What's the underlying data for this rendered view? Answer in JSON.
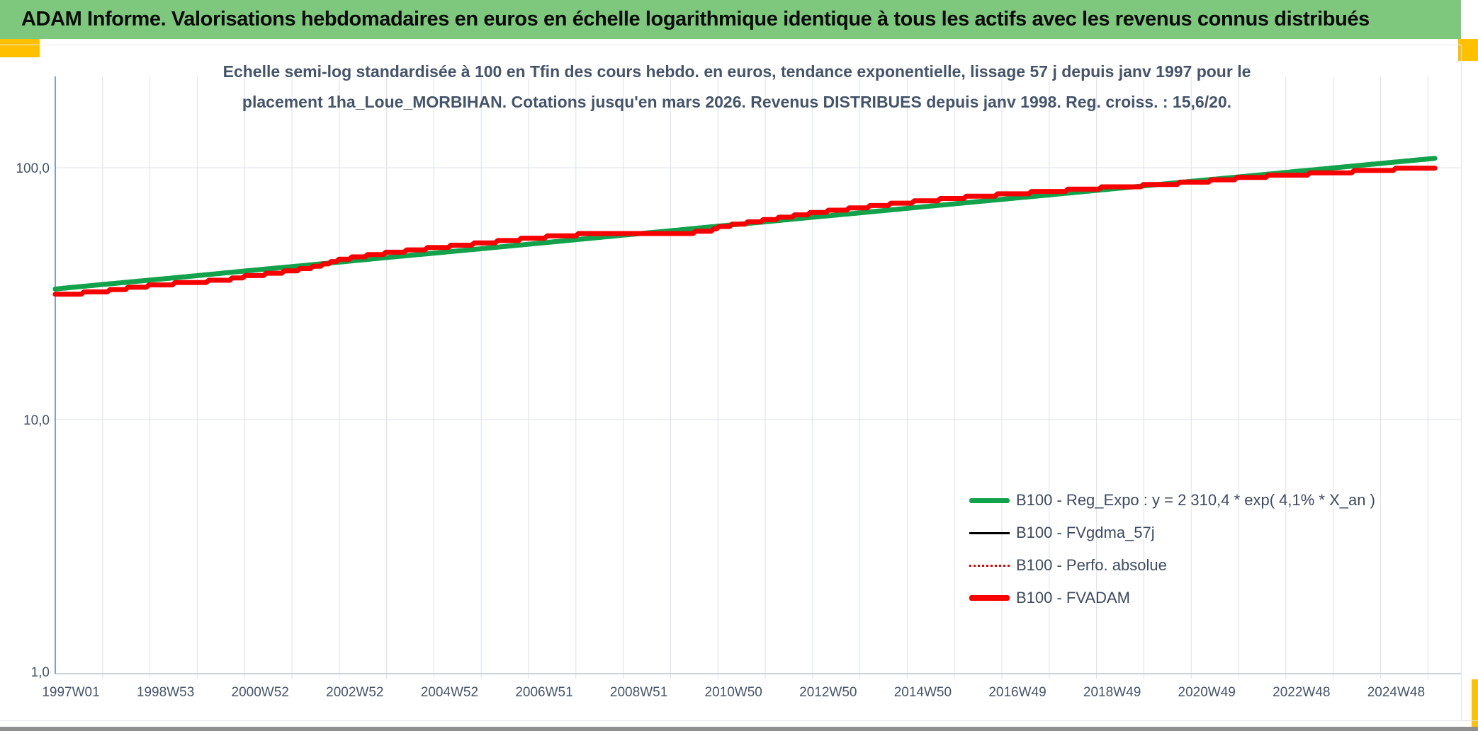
{
  "header": {
    "title": "ADAM Informe. Valorisations hebdomadaires en euros en échelle logarithmique identique à tous les actifs avec les revenus connus distribués",
    "bg_color": "#7DC87D",
    "accent_color": "#FFC000"
  },
  "chart": {
    "title_line1": "Echelle semi-log standardisée à 100 en Tfin des cours hebdo. en euros, tendance exponentielle, lissage 57 j depuis janv 1997 pour le",
    "title_line2": "placement 1ha_Loue_MORBIHAN. Cotations jusqu'en mars 2026. Revenus DISTRIBUES depuis janv 1998. Reg. croiss. : 15,6/20.",
    "title_color": "#44546A",
    "grid_color": "#DCE1E9",
    "axis_line_color": "#5E7DB5",
    "axis_bottom_color": "#CDD3DB",
    "tick_label_color": "#44546A"
  },
  "chart_data": {
    "type": "line",
    "title": "Echelle semi-log standardisée à 100 en Tfin des cours hebdo. en euros, tendance exponentielle, lissage 57 j depuis janv 1997 pour le placement 1ha_Loue_MORBIHAN. Cotations jusqu'en mars 2026. Revenus DISTRIBUES depuis janv 1998. Reg. croiss. : 15,6/20.",
    "grid": true,
    "legend_position": "right-center",
    "y_axis": {
      "scale": "log",
      "tick_labels": [
        "100,0",
        "10,0",
        "1,0"
      ],
      "tick_values": [
        100,
        10,
        1
      ],
      "range": [
        1,
        230
      ]
    },
    "x_axis": {
      "labels": [
        "1997W01",
        "1998W53",
        "2000W52",
        "2002W52",
        "2004W52",
        "2006W51",
        "2008W51",
        "2010W50",
        "2012W50",
        "2014W50",
        "2016W49",
        "2018W49",
        "2020W49",
        "2022W48",
        "2024W48"
      ],
      "label_years": [
        1997,
        1999,
        2001,
        2003,
        2005,
        2007,
        2009,
        2011,
        2013,
        2015,
        2017,
        2019,
        2021,
        2023,
        2025
      ],
      "range_years": [
        1997.0,
        2026.7
      ],
      "data_end_year": 2026.2,
      "gridline_every_years": 1
    },
    "series": [
      {
        "name": "B100 - Reg_Expo",
        "legend_label": "B100 - Reg_Expo : y = 2 310,4 * exp( 4,1% *  X_an )",
        "color": "#12A24B",
        "width": 7,
        "style": "smooth",
        "regression": {
          "coefficient_label": "2 310,4",
          "growth_rate_pct": 4.1,
          "x_variable": "X_an"
        },
        "years": [
          1997,
          1998,
          1999,
          2000,
          2001,
          2002,
          2003,
          2004,
          2005,
          2006,
          2007,
          2008,
          2009,
          2010,
          2011,
          2012,
          2013,
          2014,
          2015,
          2016,
          2017,
          2018,
          2019,
          2020,
          2021,
          2022,
          2023,
          2024,
          2025,
          2026,
          2026.2
        ],
        "values": [
          33.0,
          34.4,
          35.8,
          37.3,
          38.9,
          40.5,
          42.2,
          44.0,
          45.8,
          47.7,
          49.7,
          51.8,
          54.0,
          56.2,
          58.6,
          61.0,
          63.6,
          66.2,
          69.0,
          71.9,
          74.9,
          78.0,
          81.3,
          84.7,
          88.3,
          91.9,
          95.8,
          99.8,
          104.0,
          108.3,
          109.2
        ]
      },
      {
        "name": "B100 - FVgdma_57j",
        "legend_label": "B100 - FVgdma_57j",
        "color": "#000000",
        "width": 3,
        "style": "smooth",
        "note": "curve coincides with B100 - FVADAM and is hidden beneath it",
        "values_same_as": "B100 - FVADAM"
      },
      {
        "name": "B100 - Perfo. absolue",
        "legend_label": "B100 - Perfo. absolue",
        "color": "#E10000",
        "width": 2,
        "style": "dotted",
        "dash": "2 4",
        "note": "curve coincides with B100 - FVADAM and is hidden beneath it",
        "values_same_as": "B100 - FVADAM"
      },
      {
        "name": "B100 - FVADAM",
        "legend_label": "B100 - FVADAM",
        "color": "#F70000",
        "width": 7,
        "style": "steps",
        "years": [
          1997.0,
          1997.6,
          1998.0,
          1999.0,
          2000.0,
          2000.5,
          2001.0,
          2002.0,
          2002.5,
          2003.0,
          2003.5,
          2004.0,
          2005.0,
          2006.0,
          2007.0,
          2008.0,
          2008.6,
          2009.3,
          2010.2,
          2010.8,
          2011.0,
          2011.5,
          2012.0,
          2013.0,
          2014.0,
          2015.0,
          2016.0,
          2017.0,
          2018.0,
          2019.0,
          2020.0,
          2021.0,
          2022.0,
          2023.0,
          2024.0,
          2025.0,
          2026.0,
          2026.2
        ],
        "values": [
          31.6,
          31.8,
          32.3,
          34.0,
          35.3,
          35.5,
          36.9,
          38.9,
          40.5,
          43.0,
          44.6,
          45.8,
          48.1,
          50.1,
          52.4,
          54.2,
          55.0,
          55.3,
          55.0,
          55.8,
          58.0,
          60.0,
          62.0,
          66.0,
          69.5,
          72.8,
          75.7,
          78.2,
          80.5,
          82.9,
          85.0,
          87.3,
          90.7,
          93.5,
          95.5,
          97.9,
          100.0,
          100.3
        ]
      }
    ]
  }
}
